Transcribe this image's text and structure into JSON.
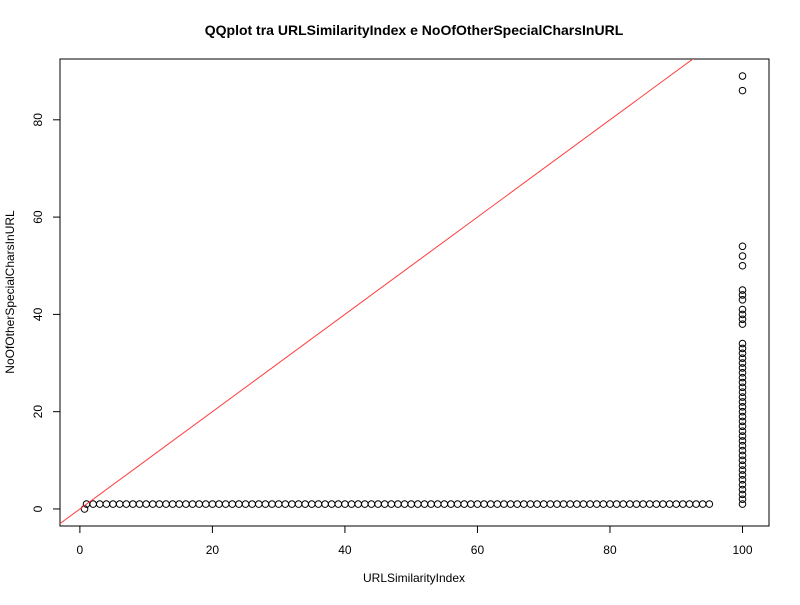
{
  "chart_data": {
    "type": "scatter",
    "title": "QQplot tra URLSimilarityIndex e NoOfOtherSpecialCharsInURL",
    "x_label": "URLSimilarityIndex",
    "y_label": "NoOfOtherSpecialCharsInURL",
    "x": [
      0.7,
      1,
      2,
      3,
      4,
      5,
      6,
      7,
      8,
      9,
      10,
      11,
      12,
      13,
      14,
      15,
      16,
      17,
      18,
      19,
      20,
      21,
      22,
      23,
      24,
      25,
      26,
      27,
      28,
      29,
      30,
      31,
      32,
      33,
      34,
      35,
      36,
      37,
      38,
      39,
      40,
      41,
      42,
      43,
      44,
      45,
      46,
      47,
      48,
      49,
      50,
      51,
      52,
      53,
      54,
      55,
      56,
      57,
      58,
      59,
      60,
      61,
      62,
      63,
      64,
      65,
      66,
      67,
      68,
      69,
      70,
      71,
      72,
      73,
      74,
      75,
      76,
      77,
      78,
      79,
      80,
      81,
      82,
      83,
      84,
      85,
      86,
      87,
      88,
      89,
      90,
      91,
      92,
      93,
      94,
      95,
      100,
      100,
      100,
      100,
      100,
      100,
      100,
      100,
      100,
      100,
      100,
      100,
      100,
      100,
      100,
      100,
      100,
      100,
      100,
      100,
      100,
      100,
      100,
      100,
      100,
      100,
      100,
      100,
      100,
      100,
      100,
      100,
      100,
      100,
      100,
      100,
      100,
      100,
      100,
      100,
      100,
      100,
      100,
      100,
      100,
      100
    ],
    "y": [
      0,
      1,
      1,
      1,
      1,
      1,
      1,
      1,
      1,
      1,
      1,
      1,
      1,
      1,
      1,
      1,
      1,
      1,
      1,
      1,
      1,
      1,
      1,
      1,
      1,
      1,
      1,
      1,
      1,
      1,
      1,
      1,
      1,
      1,
      1,
      1,
      1,
      1,
      1,
      1,
      1,
      1,
      1,
      1,
      1,
      1,
      1,
      1,
      1,
      1,
      1,
      1,
      1,
      1,
      1,
      1,
      1,
      1,
      1,
      1,
      1,
      1,
      1,
      1,
      1,
      1,
      1,
      1,
      1,
      1,
      1,
      1,
      1,
      1,
      1,
      1,
      1,
      1,
      1,
      1,
      1,
      1,
      1,
      1,
      1,
      1,
      1,
      1,
      1,
      1,
      1,
      1,
      1,
      1,
      1,
      1,
      1,
      2,
      3,
      4,
      5,
      6,
      7,
      8,
      9,
      10,
      11,
      12,
      13,
      14,
      15,
      16,
      17,
      18,
      19,
      20,
      21,
      22,
      23,
      24,
      25,
      26,
      27,
      28,
      29,
      30,
      31,
      32,
      33,
      34,
      38,
      39,
      40,
      41,
      43,
      44,
      45,
      50,
      52,
      54,
      86,
      89
    ],
    "point_color": "#000000",
    "reference_line": {
      "slope": 1,
      "intercept": 0,
      "color": "#ff3b3b"
    },
    "xlim": [
      -3,
      104
    ],
    "ylim": [
      -3.5,
      92.5
    ],
    "xticks": [
      0,
      20,
      40,
      60,
      80,
      100
    ],
    "yticks": [
      0,
      20,
      40,
      60,
      80
    ]
  }
}
